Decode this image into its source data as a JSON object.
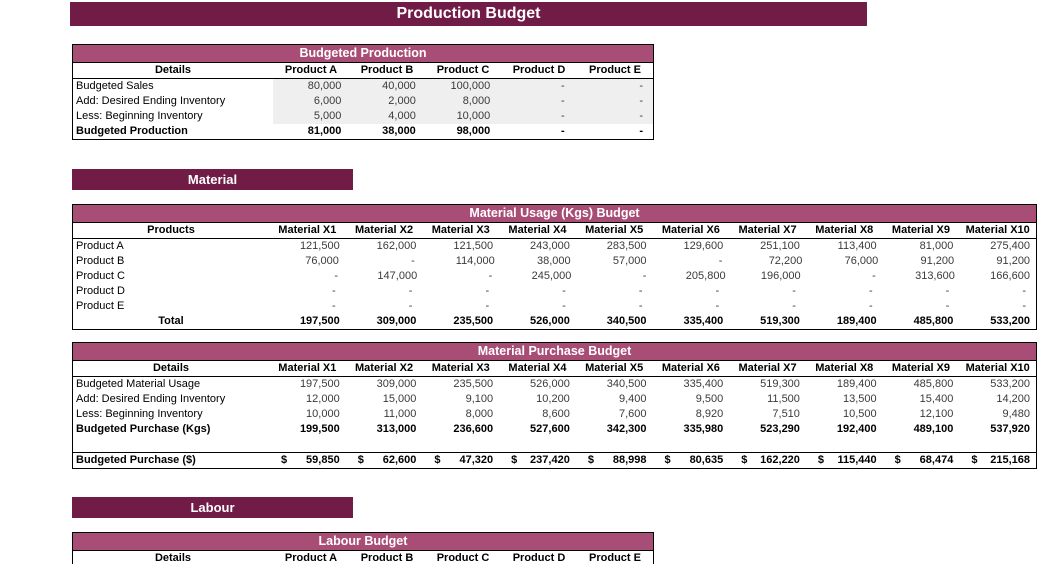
{
  "title": "Production Budget",
  "colors": {
    "maroon": "#711C47",
    "pink": "#A84E76",
    "row_shade": "#EFEFEF"
  },
  "sections": {
    "material": "Material",
    "labour": "Labour"
  },
  "tables": {
    "budgeted_production": {
      "title": "Budgeted Production",
      "header": {
        "first": "Details",
        "cols": [
          "Product A",
          "Product B",
          "Product C",
          "Product D",
          "Product E"
        ]
      },
      "rows": [
        {
          "label": "Budgeted Sales",
          "shaded": true,
          "values": [
            "80,000",
            "40,000",
            "100,000",
            "-",
            "-"
          ]
        },
        {
          "label": "Add: Desired Ending Inventory",
          "shaded": true,
          "values": [
            "6,000",
            "2,000",
            "8,000",
            "-",
            "-"
          ]
        },
        {
          "label": "Less: Beginning Inventory",
          "shaded": true,
          "values": [
            "5,000",
            "4,000",
            "10,000",
            "-",
            "-"
          ]
        },
        {
          "label": "Budgeted Production",
          "bold": true,
          "values": [
            "81,000",
            "38,000",
            "98,000",
            "-",
            "-"
          ]
        }
      ]
    },
    "material_usage": {
      "title": "Material Usage (Kgs) Budget",
      "header": {
        "first": "Products",
        "cols": [
          "Material X1",
          "Material X2",
          "Material X3",
          "Material X4",
          "Material X5",
          "Material X6",
          "Material X7",
          "Material X8",
          "Material X9",
          "Material X10"
        ]
      },
      "rows": [
        {
          "label": "Product A",
          "values": [
            "121,500",
            "162,000",
            "121,500",
            "243,000",
            "283,500",
            "129,600",
            "251,100",
            "113,400",
            "81,000",
            "275,400"
          ]
        },
        {
          "label": "Product B",
          "values": [
            "76,000",
            "-",
            "114,000",
            "38,000",
            "57,000",
            "-",
            "72,200",
            "76,000",
            "91,200",
            "91,200"
          ]
        },
        {
          "label": "Product C",
          "values": [
            "-",
            "147,000",
            "-",
            "245,000",
            "-",
            "205,800",
            "196,000",
            "-",
            "313,600",
            "166,600"
          ]
        },
        {
          "label": "Product D",
          "values": [
            "-",
            "-",
            "-",
            "-",
            "-",
            "-",
            "-",
            "-",
            "-",
            "-"
          ]
        },
        {
          "label": "Product E",
          "values": [
            "-",
            "-",
            "-",
            "-",
            "-",
            "-",
            "-",
            "-",
            "-",
            "-"
          ]
        },
        {
          "label": "Total",
          "bold": true,
          "center_label": true,
          "values": [
            "197,500",
            "309,000",
            "235,500",
            "526,000",
            "340,500",
            "335,400",
            "519,300",
            "189,400",
            "485,800",
            "533,200"
          ]
        }
      ]
    },
    "material_purchase": {
      "title": "Material Purchase Budget",
      "header": {
        "first": "Details",
        "cols": [
          "Material X1",
          "Material X2",
          "Material X3",
          "Material X4",
          "Material X5",
          "Material X6",
          "Material X7",
          "Material X8",
          "Material X9",
          "Material X10"
        ]
      },
      "rows": [
        {
          "label": "Budgeted Material Usage",
          "values": [
            "197,500",
            "309,000",
            "235,500",
            "526,000",
            "340,500",
            "335,400",
            "519,300",
            "189,400",
            "485,800",
            "533,200"
          ]
        },
        {
          "label": "Add: Desired Ending Inventory",
          "values": [
            "12,000",
            "15,000",
            "9,100",
            "10,200",
            "9,400",
            "9,500",
            "11,500",
            "13,500",
            "15,400",
            "14,200"
          ]
        },
        {
          "label": "Less: Beginning Inventory",
          "values": [
            "10,000",
            "11,000",
            "8,000",
            "8,600",
            "7,600",
            "8,920",
            "7,510",
            "10,500",
            "12,100",
            "9,480"
          ]
        },
        {
          "label": "Budgeted Purchase (Kgs)",
          "bold": true,
          "values": [
            "199,500",
            "313,000",
            "236,600",
            "527,600",
            "342,300",
            "335,980",
            "523,290",
            "192,400",
            "489,100",
            "537,920"
          ]
        }
      ],
      "dollar_rows": [
        {
          "label": "Budgeted Purchase ($)",
          "bold": true,
          "dollar": true,
          "currency": "$",
          "values": [
            "59,850",
            "62,600",
            "47,320",
            "237,420",
            "88,998",
            "80,635",
            "162,220",
            "115,440",
            "68,474",
            "215,168"
          ]
        }
      ]
    },
    "labour_budget": {
      "title": "Labour Budget",
      "header": {
        "first": "Details",
        "cols": [
          "Product A",
          "Product B",
          "Product C",
          "Product D",
          "Product E"
        ]
      }
    }
  }
}
